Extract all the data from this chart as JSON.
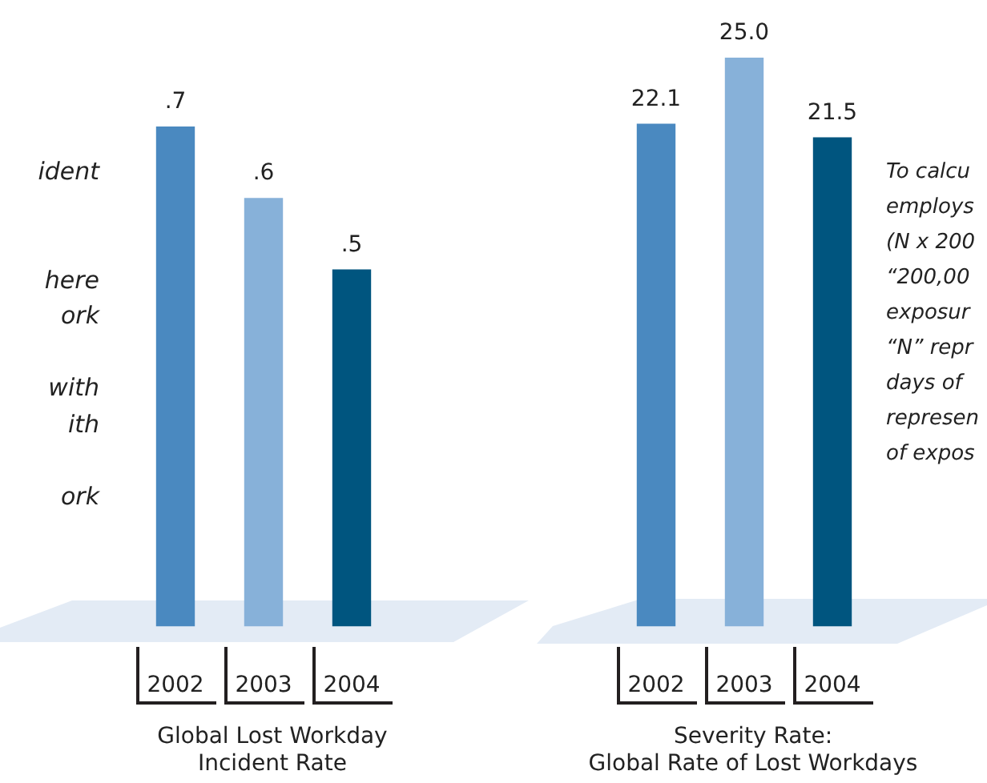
{
  "chart_data": [
    {
      "type": "bar",
      "title": "Global Lost Workday\nIncident Rate",
      "categories": [
        "2002",
        "2003",
        "2004"
      ],
      "values": [
        0.7,
        0.6,
        0.5
      ],
      "colors": [
        "#4a89c0",
        "#87b1d9",
        "#00557f"
      ],
      "value_labels": [
        ".7",
        ".6",
        ".5"
      ],
      "tick_labels": "x",
      "annotations": [
        "ident\n\n\nhere\nork\n\nwith\nith\n\nork"
      ]
    },
    {
      "type": "bar",
      "title": "Severity Rate:\nGlobal Rate of Lost Workdays",
      "categories": [
        "2002",
        "2003",
        "2004"
      ],
      "values": [
        22.1,
        25.0,
        21.5
      ],
      "colors": [
        "#4a89c0",
        "#87b1d9",
        "#00557f"
      ],
      "value_labels": [
        "22.1",
        "25.0",
        "21.5"
      ],
      "tick_labels": "x",
      "annotations": [
        "To calcu\nemploys\n(N x 200\n“200,00\nexposur\n“N” repr\ndays of\nrepresen\nof expos"
      ]
    }
  ]
}
